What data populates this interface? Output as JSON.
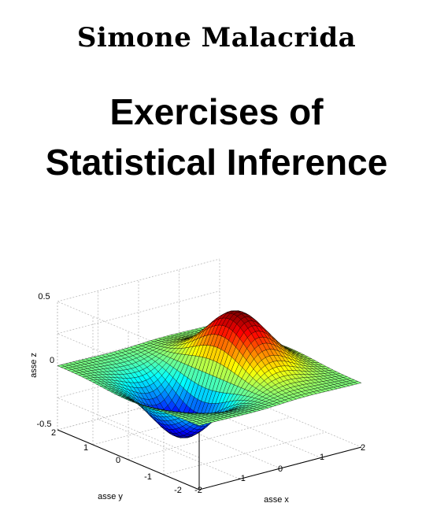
{
  "cover": {
    "author": "Simone Malacrida",
    "title_line1": "Exercises of",
    "title_line2": "Statistical Inference"
  },
  "figure": {
    "z_ticks": [
      "0.5",
      "0",
      "-0.5"
    ],
    "y_ticks": [
      "2",
      "1",
      "0",
      "-1",
      "-2"
    ],
    "x_ticks": [
      "-2",
      "-1",
      "0",
      "1",
      "2"
    ],
    "z_label": "asse z",
    "y_label": "asse y",
    "x_label": "asse x",
    "colors": {
      "high": "#c00000",
      "mid": "#22cc44",
      "low": "#1a1aff"
    }
  }
}
